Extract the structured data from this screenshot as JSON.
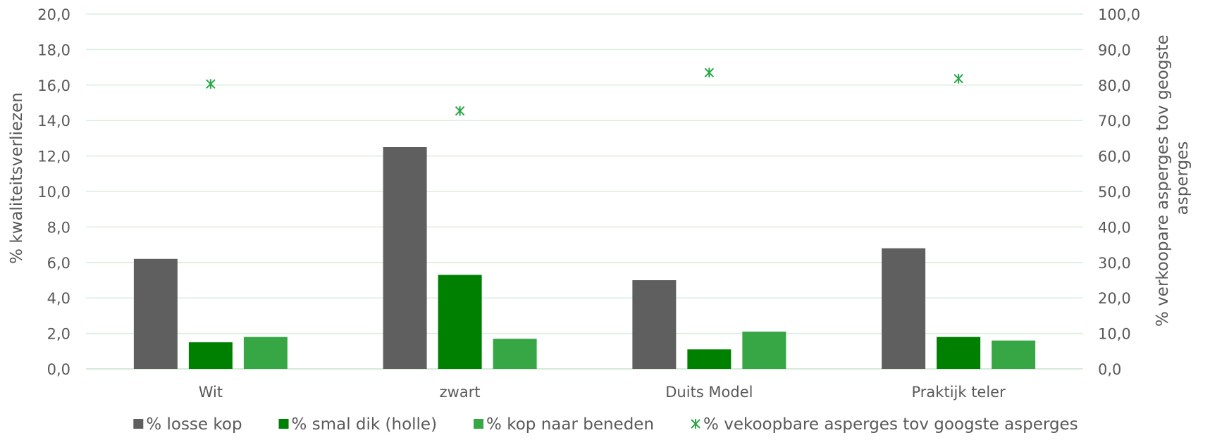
{
  "chart_data": {
    "type": "bar",
    "categories": [
      "Wit",
      "zwart",
      "Duits Model",
      "Praktijk teler"
    ],
    "series": [
      {
        "name": "% losse kop",
        "values": [
          6.2,
          12.5,
          5.0,
          6.8
        ],
        "color": "#5f5f5f",
        "axis": "left",
        "marker": "square"
      },
      {
        "name": "% smal dik (holle)",
        "values": [
          1.5,
          5.3,
          1.1,
          1.8
        ],
        "color": "#008000",
        "axis": "left",
        "marker": "square"
      },
      {
        "name": "% kop naar beneden",
        "values": [
          1.8,
          1.7,
          2.1,
          1.6
        ],
        "color": "#37a745",
        "axis": "left",
        "marker": "square"
      },
      {
        "name": "% vekoopbare asperges tov googste asperges",
        "values": [
          80.3,
          72.7,
          83.5,
          81.8
        ],
        "color": "#28a745",
        "axis": "right",
        "marker": "asterisk"
      }
    ],
    "ylabel": "% kwaliteitsverliezen",
    "y2label_lines": [
      "% verkoopare asperges tov geogste",
      "asperges"
    ],
    "ylim": [
      0,
      20
    ],
    "y2lim": [
      0,
      100
    ],
    "yticks": [
      "0,0",
      "2,0",
      "4,0",
      "6,0",
      "8,0",
      "10,0",
      "12,0",
      "14,0",
      "16,0",
      "18,0",
      "20,0"
    ],
    "y2ticks": [
      "0,0",
      "10,0",
      "20,0",
      "30,0",
      "40,0",
      "50,0",
      "60,0",
      "70,0",
      "80,0",
      "90,0",
      "100,0"
    ],
    "grid": true,
    "gridColor": "#d9eede",
    "legend": "bottom"
  }
}
